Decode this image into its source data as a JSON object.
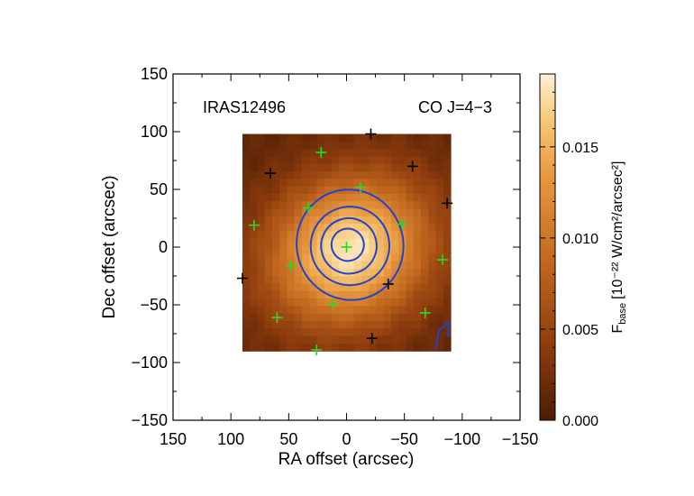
{
  "chart_data": {
    "type": "heatmap",
    "title": "",
    "annotations": {
      "source": "IRAS12496",
      "line": "CO J=4−3"
    },
    "xlabel": "RA offset (arcsec)",
    "ylabel": "Dec offset (arcsec)",
    "xlim": [
      150,
      -150
    ],
    "ylim": [
      -150,
      150
    ],
    "x_ticks": [
      150,
      100,
      50,
      0,
      -50,
      -100,
      -150
    ],
    "x_tick_labels": [
      "150",
      "100",
      "50",
      "0",
      "−50",
      "−100",
      "−150"
    ],
    "y_ticks": [
      150,
      100,
      50,
      0,
      -50,
      -100,
      -150
    ],
    "y_tick_labels": [
      "150",
      "100",
      "50",
      "0",
      "−50",
      "−100",
      "−150"
    ],
    "map_extent": {
      "x": [
        90,
        -90
      ],
      "y": [
        -90,
        98
      ]
    },
    "map_peak": {
      "x": -3,
      "y": -3
    },
    "colorbar": {
      "label_main": "F",
      "label_sub": "base",
      "label_rest": "[10⁻²² W/cm²/arcsec²]",
      "range": [
        0,
        0.019
      ],
      "ticks": [
        0.0,
        0.005,
        0.01,
        0.015
      ],
      "tick_labels": [
        "0.000",
        "0.005",
        "0.010",
        "0.015"
      ],
      "colors": [
        "#4a1d05",
        "#8a3a0c",
        "#c0661e",
        "#e8973d",
        "#f8c878",
        "#fcf2d8"
      ]
    },
    "contour_color": "#2244cc",
    "contours": [
      {
        "level": 1,
        "cx": -3,
        "cy": 2,
        "rx": 46,
        "ry": 48
      },
      {
        "level": 2,
        "cx": -3,
        "cy": 1,
        "rx": 34,
        "ry": 34
      },
      {
        "level": 3,
        "cx": -2,
        "cy": 1,
        "rx": 24,
        "ry": 24
      },
      {
        "level": 4,
        "cx": -1,
        "cy": 2,
        "rx": 14,
        "ry": 14
      }
    ],
    "off_map_contour_points": [
      [
        -77,
        -88
      ],
      [
        -80,
        -72
      ],
      [
        -88,
        -65
      ],
      [
        -88,
        -78
      ]
    ],
    "markers_green": [
      [
        0,
        0
      ],
      [
        22,
        82
      ],
      [
        -12,
        52
      ],
      [
        33,
        34
      ],
      [
        80,
        19
      ],
      [
        -48,
        20
      ],
      [
        48,
        -16
      ],
      [
        -83,
        -11
      ],
      [
        12,
        -49
      ],
      [
        -68,
        -57
      ],
      [
        60,
        -61
      ],
      [
        26,
        -89
      ]
    ],
    "markers_black": [
      [
        -21,
        98
      ],
      [
        66,
        64
      ],
      [
        -57,
        70
      ],
      [
        -87,
        38
      ],
      [
        90,
        -27
      ],
      [
        -36,
        -32
      ],
      [
        -22,
        -79
      ]
    ]
  }
}
